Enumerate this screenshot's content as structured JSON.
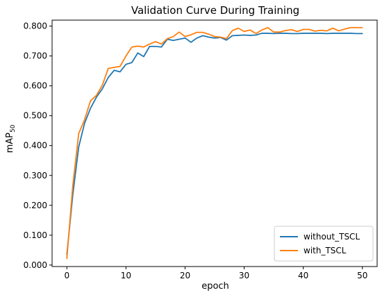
{
  "chart_data": {
    "type": "line",
    "title": "Validation Curve During Training",
    "xlabel": "epoch",
    "ylabel": "mAP",
    "ylabel_sub": "50",
    "xlim": [
      -2.5,
      52.5
    ],
    "ylim": [
      -0.005,
      0.82
    ],
    "xticks": [
      0,
      10,
      20,
      30,
      40,
      50
    ],
    "yticks": [
      0.0,
      0.1,
      0.2,
      0.3,
      0.4,
      0.5,
      0.6,
      0.7,
      0.8
    ],
    "ytick_labels": [
      "0.000",
      "0.100",
      "0.200",
      "0.300",
      "0.400",
      "0.500",
      "0.600",
      "0.700",
      "0.800"
    ],
    "grid": false,
    "legend_position": "lower-right",
    "x": [
      0,
      1,
      2,
      3,
      4,
      5,
      6,
      7,
      8,
      9,
      10,
      11,
      12,
      13,
      14,
      15,
      16,
      17,
      18,
      19,
      20,
      21,
      22,
      23,
      24,
      25,
      26,
      27,
      28,
      29,
      30,
      31,
      32,
      33,
      34,
      35,
      36,
      37,
      38,
      39,
      40,
      41,
      42,
      43,
      44,
      45,
      46,
      47,
      48,
      49,
      50
    ],
    "series": [
      {
        "name": "without_TSCL",
        "color": "#1f77b4",
        "values": [
          0.035,
          0.235,
          0.395,
          0.475,
          0.525,
          0.562,
          0.59,
          0.628,
          0.652,
          0.647,
          0.672,
          0.678,
          0.71,
          0.698,
          0.732,
          0.732,
          0.73,
          0.756,
          0.752,
          0.756,
          0.76,
          0.746,
          0.76,
          0.768,
          0.763,
          0.76,
          0.762,
          0.753,
          0.768,
          0.769,
          0.77,
          0.769,
          0.77,
          0.776,
          0.776,
          0.775,
          0.776,
          0.776,
          0.775,
          0.775,
          0.776,
          0.776,
          0.776,
          0.776,
          0.775,
          0.776,
          0.776,
          0.776,
          0.776,
          0.775,
          0.775
        ]
      },
      {
        "name": "with_TSCL",
        "color": "#ff7f0e",
        "values": [
          0.022,
          0.265,
          0.44,
          0.487,
          0.55,
          0.568,
          0.602,
          0.658,
          0.662,
          0.665,
          0.7,
          0.73,
          0.733,
          0.73,
          0.74,
          0.748,
          0.74,
          0.758,
          0.765,
          0.78,
          0.765,
          0.771,
          0.779,
          0.779,
          0.773,
          0.765,
          0.763,
          0.758,
          0.785,
          0.793,
          0.782,
          0.787,
          0.775,
          0.787,
          0.795,
          0.78,
          0.78,
          0.785,
          0.788,
          0.782,
          0.789,
          0.789,
          0.783,
          0.786,
          0.784,
          0.793,
          0.784,
          0.79,
          0.795,
          0.795,
          0.795
        ]
      }
    ]
  }
}
